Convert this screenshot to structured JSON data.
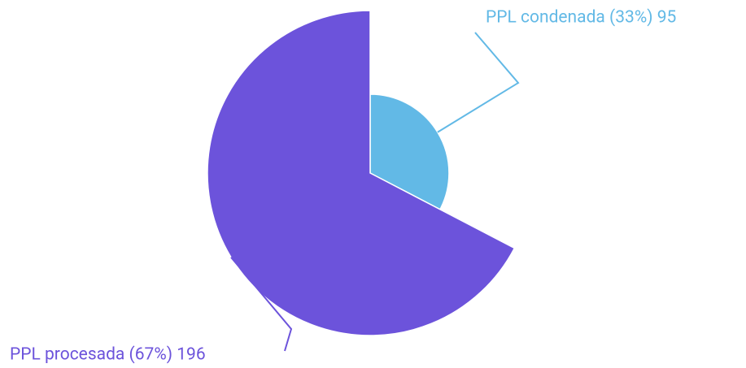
{
  "chart_data": {
    "type": "pie",
    "values": [
      95,
      196
    ],
    "value_labels": [
      "PPL condenada (33%) 95",
      "PPL procesada (67%) 196"
    ],
    "colors": [
      "#62b9e6",
      "#6c53db"
    ],
    "radius_by_value": true
  }
}
